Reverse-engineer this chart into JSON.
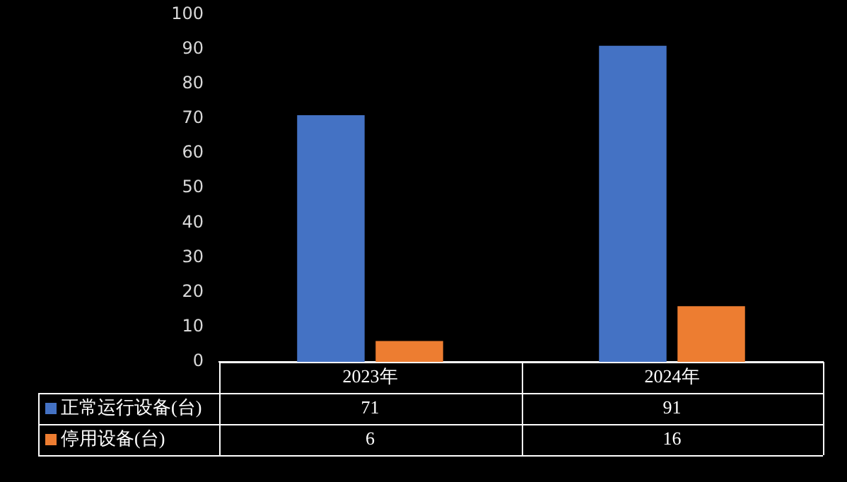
{
  "chart_data": {
    "type": "bar",
    "categories": [
      "2023年",
      "2024年"
    ],
    "series": [
      {
        "name": "正常运行设备(台)",
        "color": "#4472c4",
        "values": [
          71,
          91
        ]
      },
      {
        "name": "停用设备(台)",
        "color": "#ed7d31",
        "values": [
          6,
          16
        ]
      }
    ],
    "ylim": [
      0,
      100
    ],
    "yticks": [
      0,
      10,
      20,
      30,
      40,
      50,
      60,
      70,
      80,
      90,
      100
    ],
    "grid": false,
    "legend": "bottom",
    "data_labels": true
  }
}
